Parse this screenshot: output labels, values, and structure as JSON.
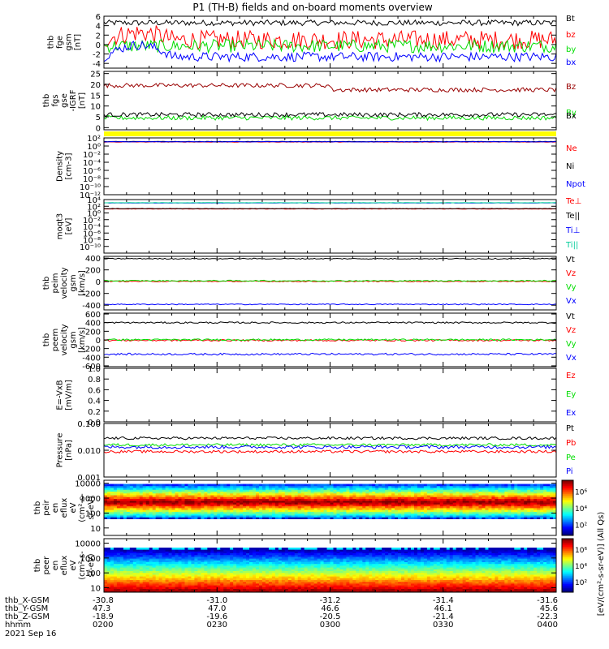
{
  "title": "P1 (TH-B) fields and on-board moments overview",
  "colors": {
    "black": "#000000",
    "red": "#ff0000",
    "green": "#00dd00",
    "blue": "#0000ff",
    "darkred": "#990000",
    "yellow": "#ffff00",
    "cyan": "#00cc99"
  },
  "chart_data": [
    {
      "type": "line",
      "ylabel": [
        "thb",
        "fge",
        "gsm",
        "[nT]"
      ],
      "ylim": [
        -5,
        6
      ],
      "yticks": [
        "6",
        "4",
        "2",
        "0",
        "-2",
        "-4"
      ],
      "ytick_values": [
        6,
        4,
        2,
        0,
        -2,
        -4
      ],
      "legend": [
        "Bt",
        "bz",
        "by",
        "bx"
      ],
      "series": [
        {
          "name": "Bt",
          "color": "#000000",
          "mean": 4.6,
          "noise": 0.6
        },
        {
          "name": "bz",
          "color": "#ff0000",
          "mean": 1.0,
          "noise": 2.0
        },
        {
          "name": "by",
          "color": "#00dd00",
          "mean": -0.3,
          "noise": 1.4
        },
        {
          "name": "bx",
          "color": "#0000ff",
          "mean": -2.6,
          "noise": 1.0
        }
      ]
    },
    {
      "type": "line",
      "ylabel": [
        "thb",
        "fgs",
        "gse",
        "-IGRF",
        "[nT]"
      ],
      "ylim": [
        -1,
        26
      ],
      "yticks": [
        "25",
        "20",
        "15",
        "10",
        "5",
        "0"
      ],
      "ytick_values": [
        25,
        20,
        15,
        10,
        5,
        0
      ],
      "legend": [
        "Bz",
        "By",
        "Bx"
      ],
      "series": [
        {
          "name": "Bz",
          "color": "#990000",
          "mean": 19.5,
          "noise": 1.0
        },
        {
          "name": "By",
          "color": "#00dd00",
          "mean": 4.5,
          "noise": 1.0
        },
        {
          "name": "Bx",
          "color": "#000000",
          "mean": 6.0,
          "noise": 1.0
        }
      ]
    },
    {
      "type": "line",
      "ylabel": [
        "Density",
        "[cm-3]"
      ],
      "ylim": [
        -12,
        2
      ],
      "yticks": [
        "10²",
        "10⁰",
        "10⁻²",
        "10⁻⁴",
        "10⁻⁶",
        "10⁻⁸",
        "10⁻¹⁰",
        "10⁻¹²"
      ],
      "ytick_values": [
        2,
        0,
        -2,
        -4,
        -6,
        -8,
        -10,
        -12
      ],
      "legend": [
        "Ne",
        "Ni",
        "Npot"
      ],
      "series": [
        {
          "name": "Ne",
          "color": "#ff0000",
          "mean": 1.0,
          "noise": 0.05
        },
        {
          "name": "Ni",
          "color": "#000000",
          "mean": 1.1,
          "noise": 0.05
        },
        {
          "name": "Npot",
          "color": "#0000ff",
          "mean": 1.05,
          "noise": 0.05
        }
      ]
    },
    {
      "type": "line",
      "ylabel": [
        "moqt3",
        "[eV]"
      ],
      "ylim": [
        -12,
        4
      ],
      "yticks": [
        "10⁴",
        "10²",
        "10⁰",
        "10⁻²",
        "10⁻⁴",
        "10⁻⁶",
        "10⁻⁸",
        "10⁻¹⁰"
      ],
      "ytick_values": [
        4,
        2,
        0,
        -2,
        -4,
        -6,
        -8,
        -10
      ],
      "legend": [
        "Te⊥",
        "Te||",
        "Ti⊥",
        "Ti||"
      ],
      "series": [
        {
          "name": "Te⊥",
          "color": "#ff0000",
          "mean": 1.2,
          "noise": 0.05
        },
        {
          "name": "Te||",
          "color": "#000000",
          "mean": 1.3,
          "noise": 0.05
        },
        {
          "name": "Ti⊥",
          "color": "#0000ff",
          "mean": 3.0,
          "noise": 0.03
        },
        {
          "name": "Ti||",
          "color": "#00cc99",
          "mean": 3.05,
          "noise": 0.03
        }
      ]
    },
    {
      "type": "line",
      "ylabel": [
        "thb",
        "peim",
        "velocity",
        "gsm",
        "[km/s]"
      ],
      "ylim": [
        -480,
        430
      ],
      "yticks": [
        "400",
        "200",
        "0",
        "-200",
        "-400"
      ],
      "ytick_values": [
        400,
        200,
        0,
        -200,
        -400
      ],
      "legend": [
        "Vt",
        "Vz",
        "Vy",
        "Vx"
      ],
      "series": [
        {
          "name": "Vt",
          "color": "#000000",
          "mean": 390,
          "noise": 8
        },
        {
          "name": "Vz",
          "color": "#ff0000",
          "mean": 5,
          "noise": 8
        },
        {
          "name": "Vy",
          "color": "#00dd00",
          "mean": 15,
          "noise": 10
        },
        {
          "name": "Vx",
          "color": "#0000ff",
          "mean": -385,
          "noise": 8
        }
      ]
    },
    {
      "type": "line",
      "ylabel": [
        "thb",
        "peem",
        "velocity",
        "gsm",
        "[km/s]"
      ],
      "ylim": [
        -620,
        620
      ],
      "yticks": [
        "600",
        "400",
        "200",
        "0",
        "-200",
        "-400",
        "-600"
      ],
      "ytick_values": [
        600,
        400,
        200,
        0,
        -200,
        -400,
        -600
      ],
      "legend": [
        "Vt",
        "Vz",
        "Vy",
        "Vx"
      ],
      "series": [
        {
          "name": "Vt",
          "color": "#000000",
          "mean": 400,
          "noise": 18
        },
        {
          "name": "Vz",
          "color": "#ff0000",
          "mean": -10,
          "noise": 20
        },
        {
          "name": "Vy",
          "color": "#00dd00",
          "mean": 5,
          "noise": 18
        },
        {
          "name": "Vx",
          "color": "#0000ff",
          "mean": -330,
          "noise": 22
        }
      ]
    },
    {
      "type": "line",
      "ylabel": [
        "E=-VxB",
        "[mV/m]"
      ],
      "ylim": [
        0,
        1
      ],
      "yticks": [
        "1.0",
        "0.8",
        "0.6",
        "0.4",
        "0.2",
        "0.0"
      ],
      "ytick_values": [
        1.0,
        0.8,
        0.6,
        0.4,
        0.2,
        0.0
      ],
      "legend": [
        "Ez",
        "Ey",
        "Ex"
      ],
      "series": []
    },
    {
      "type": "line",
      "ylabel": [
        "Pressure",
        "[nPa]"
      ],
      "ylim": [
        -3,
        -1
      ],
      "yticks": [
        "0.100",
        "0.010",
        "0.001"
      ],
      "ytick_values": [
        -1,
        -2,
        -3
      ],
      "legend": [
        "Pt",
        "Pb",
        "Pe",
        "Pi"
      ],
      "series": [
        {
          "name": "Pt",
          "color": "#000000",
          "mean": -1.55,
          "noise": 0.05
        },
        {
          "name": "Pb",
          "color": "#ff0000",
          "mean": -2.05,
          "noise": 0.05
        },
        {
          "name": "Pe",
          "color": "#00dd00",
          "mean": -1.8,
          "noise": 0.05
        },
        {
          "name": "Pi",
          "color": "#0000ff",
          "mean": -1.88,
          "noise": 0.06
        }
      ]
    },
    {
      "type": "heatmap",
      "ylabel": [
        "thb",
        "peir",
        "en",
        "eflux",
        "eV",
        "(cm²-s-",
        "sr-eV)"
      ],
      "ylim": [
        0.5,
        4.2
      ],
      "yticks": [
        "10000",
        "1000",
        "100",
        "10"
      ],
      "ytick_values": [
        4,
        3,
        2,
        1
      ],
      "band_center": 2.75,
      "band_range": [
        1.6,
        4.0
      ]
    },
    {
      "type": "heatmap",
      "ylabel": [
        "thb",
        "peer",
        "en",
        "eflux",
        "eV",
        "(cm²-s-",
        "sr-eV)"
      ],
      "ylim": [
        0.7,
        4.3
      ],
      "yticks": [
        "10000",
        "1000",
        "100",
        "10"
      ],
      "ytick_values": [
        4,
        3,
        2,
        1
      ],
      "band_center": 0.7,
      "band_range": [
        0.7,
        3.7
      ]
    }
  ],
  "colorbar": {
    "label": "[eV/(cm²-s-sr-eV)] (All Qs)",
    "ticks_top": [
      "10⁶",
      "10⁴",
      "10²"
    ],
    "ticks_bottom": [
      "10⁶",
      "10⁴",
      "10²"
    ]
  },
  "x_axis": {
    "row_labels": [
      "thb_X-GSM",
      "thb_Y-GSM",
      "thb_Z-GSM",
      "hhmm",
      "2021 Sep 16"
    ],
    "columns": [
      {
        "x": "-30.8",
        "y": "47.3",
        "z": "-18.9",
        "t": "0200"
      },
      {
        "x": "-31.0",
        "y": "47.0",
        "z": "-19.6",
        "t": "0230"
      },
      {
        "x": "-31.2",
        "y": "46.6",
        "z": "-20.5",
        "t": "0300"
      },
      {
        "x": "-31.4",
        "y": "46.1",
        "z": "-21.4",
        "t": "0330"
      },
      {
        "x": "-31.6",
        "y": "45.6",
        "z": "-22.3",
        "t": "0400"
      }
    ]
  }
}
